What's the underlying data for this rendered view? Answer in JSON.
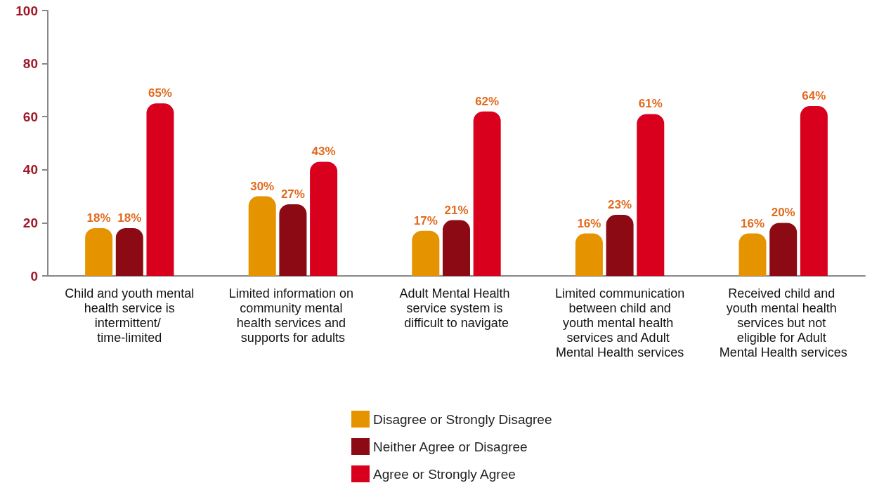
{
  "chart_data": {
    "type": "bar",
    "categories": [
      "Child and youth mental health service is intermittent/ time-limited",
      "Limited information on community mental health services and supports for adults",
      "Adult Mental Health service system is difficult to navigate",
      "Limited communication between child and youth mental health services and Adult Mental Health services",
      "Received child and youth mental health services but not eligible for Adult Mental Health services"
    ],
    "series": [
      {
        "name": "Disagree or Strongly Disagree",
        "color": "#e59400",
        "values": [
          18,
          30,
          17,
          16,
          16
        ],
        "value_labels": [
          "18%",
          "30%",
          "17%",
          "16%",
          "16%"
        ]
      },
      {
        "name": "Neither Agree or Disagree",
        "color": "#8b0a14",
        "values": [
          18,
          27,
          21,
          23,
          20
        ],
        "value_labels": [
          "18%",
          "27%",
          "21%",
          "23%",
          "20%"
        ]
      },
      {
        "name": "Agree or Strongly Agree",
        "color": "#d9001e",
        "values": [
          65,
          43,
          62,
          61,
          64
        ],
        "value_labels": [
          "65%",
          "43%",
          "62%",
          "61%",
          "64%"
        ]
      }
    ],
    "ylim": [
      0,
      100
    ],
    "yticks": [
      0,
      20,
      40,
      60,
      80,
      100
    ],
    "grid": false,
    "legend": "bottom"
  }
}
